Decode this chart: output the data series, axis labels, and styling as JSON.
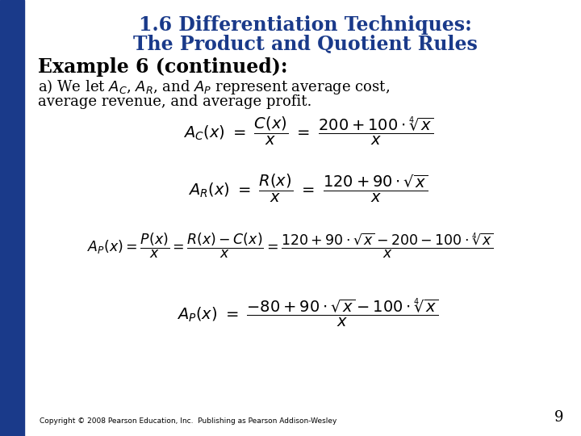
{
  "title_line1": "1.6 Differentiation Techniques:",
  "title_line2": "The Product and Quotient Rules",
  "title_color": "#1a3a8a",
  "title_fontsize": 17,
  "example_header": "Example 6 (continued):",
  "intro_text1": "a) We let $A_C$, $A_R$, and $A_P$ represent average cost,",
  "intro_text2": "average revenue, and average profit.",
  "copyright": "Copyright © 2008 Pearson Education, Inc.  Publishing as Pearson Addison-Wesley",
  "page_number": "9",
  "bg_color": "#ffffff",
  "sidebar_color": "#1a3a8a",
  "text_color": "#000000",
  "body_fontsize": 13,
  "header_fontsize": 17
}
